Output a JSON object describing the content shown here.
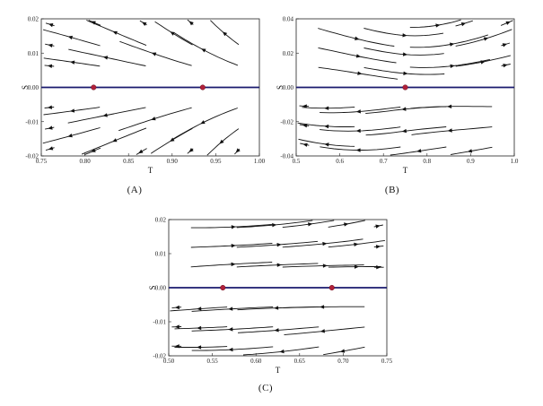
{
  "figure": {
    "captions": [
      "(A)",
      "(B)",
      "(C)"
    ]
  },
  "colors": {
    "nullcline": "#1a1a6e",
    "fixed_point": "#b0203a",
    "streamline": "#111111"
  },
  "chart_data": [
    {
      "type": "scatter",
      "subtype": "stream-plot",
      "caption": "(A)",
      "xlabel": "T",
      "ylabel": "S",
      "xlim": [
        0.75,
        1.0
      ],
      "ylim": [
        -0.02,
        0.02
      ],
      "xticks": [
        0.75,
        0.8,
        0.85,
        0.9,
        0.95,
        1.0
      ],
      "xtick_labels": [
        "0.75",
        "0.80",
        "0.85",
        "0.90",
        "0.95",
        "1.00"
      ],
      "yticks": [
        -0.02,
        -0.01,
        0.0,
        0.01,
        0.02
      ],
      "ytick_labels": [
        "-0.02",
        "-0.01",
        "0.00",
        "0.01",
        "0.02"
      ],
      "nullcline_y": 0.0,
      "fixed_points": [
        {
          "x": 0.81,
          "y": 0.0
        },
        {
          "x": 0.935,
          "y": 0.0
        }
      ],
      "grid": false
    },
    {
      "type": "scatter",
      "subtype": "stream-plot",
      "caption": "(B)",
      "xlabel": "T",
      "ylabel": "S",
      "xlim": [
        0.5,
        1.0
      ],
      "ylim": [
        -0.04,
        0.04
      ],
      "xticks": [
        0.5,
        0.6,
        0.7,
        0.8,
        0.9,
        1.0
      ],
      "xtick_labels": [
        "0.5",
        "0.6",
        "0.7",
        "0.8",
        "0.9",
        "1.0"
      ],
      "yticks": [
        -0.04,
        -0.02,
        0.0,
        0.02,
        0.04
      ],
      "ytick_labels": [
        "-0.04",
        "-0.02",
        "0.00",
        "0.02",
        "0.04"
      ],
      "nullcline_y": 0.0,
      "fixed_points": [
        {
          "x": 0.75,
          "y": 0.0
        }
      ],
      "grid": false
    },
    {
      "type": "scatter",
      "subtype": "stream-plot",
      "caption": "(C)",
      "xlabel": "T",
      "ylabel": "S",
      "xlim": [
        0.5,
        0.75
      ],
      "ylim": [
        -0.02,
        0.02
      ],
      "xticks": [
        0.5,
        0.55,
        0.6,
        0.65,
        0.7,
        0.75
      ],
      "xtick_labels": [
        "0.50",
        "0.55",
        "0.60",
        "0.65",
        "0.70",
        "0.75"
      ],
      "yticks": [
        -0.02,
        -0.01,
        0.0,
        0.01,
        0.02
      ],
      "ytick_labels": [
        "-0.02",
        "-0.01",
        "0.00",
        "0.01",
        "0.02"
      ],
      "nullcline_y": 0.0,
      "fixed_points": [
        {
          "x": 0.562,
          "y": 0.0
        },
        {
          "x": 0.687,
          "y": 0.0
        }
      ],
      "grid": false
    }
  ]
}
